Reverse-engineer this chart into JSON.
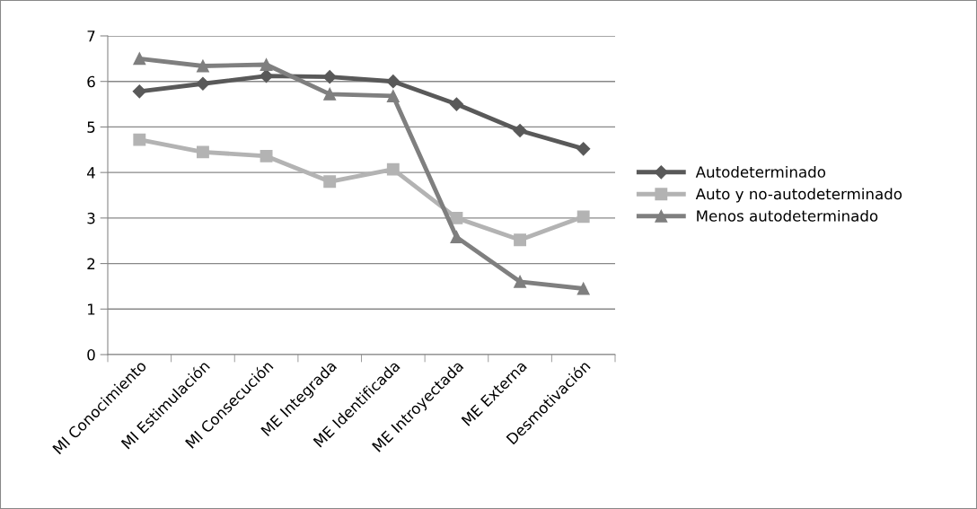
{
  "chart_data": {
    "type": "line",
    "categories": [
      "MI Conocimiento",
      "MI Estimulación",
      "MI Consecución",
      "ME Integrada",
      "ME Identificada",
      "ME Introyectada",
      "ME Externa",
      "Desmotivación"
    ],
    "series": [
      {
        "name": "Autodeterminado",
        "color": "#595959",
        "marker": "diamond",
        "values": [
          5.78,
          5.95,
          6.12,
          6.1,
          6.0,
          5.5,
          4.92,
          4.52
        ]
      },
      {
        "name": "Auto y no-autodeterminado",
        "color": "#b3b3b3",
        "marker": "square",
        "values": [
          4.72,
          4.45,
          4.36,
          3.8,
          4.07,
          3.0,
          2.52,
          3.03
        ]
      },
      {
        "name": "Menos autodeterminado",
        "color": "#7f7f7f",
        "marker": "triangle",
        "values": [
          6.5,
          6.34,
          6.37,
          5.72,
          5.68,
          2.58,
          1.6,
          1.45
        ]
      }
    ],
    "ylim": [
      0,
      7
    ],
    "yticks": [
      0,
      1,
      2,
      3,
      4,
      5,
      6,
      7
    ],
    "grid": "y",
    "legend": "right",
    "line_style": "solid"
  }
}
